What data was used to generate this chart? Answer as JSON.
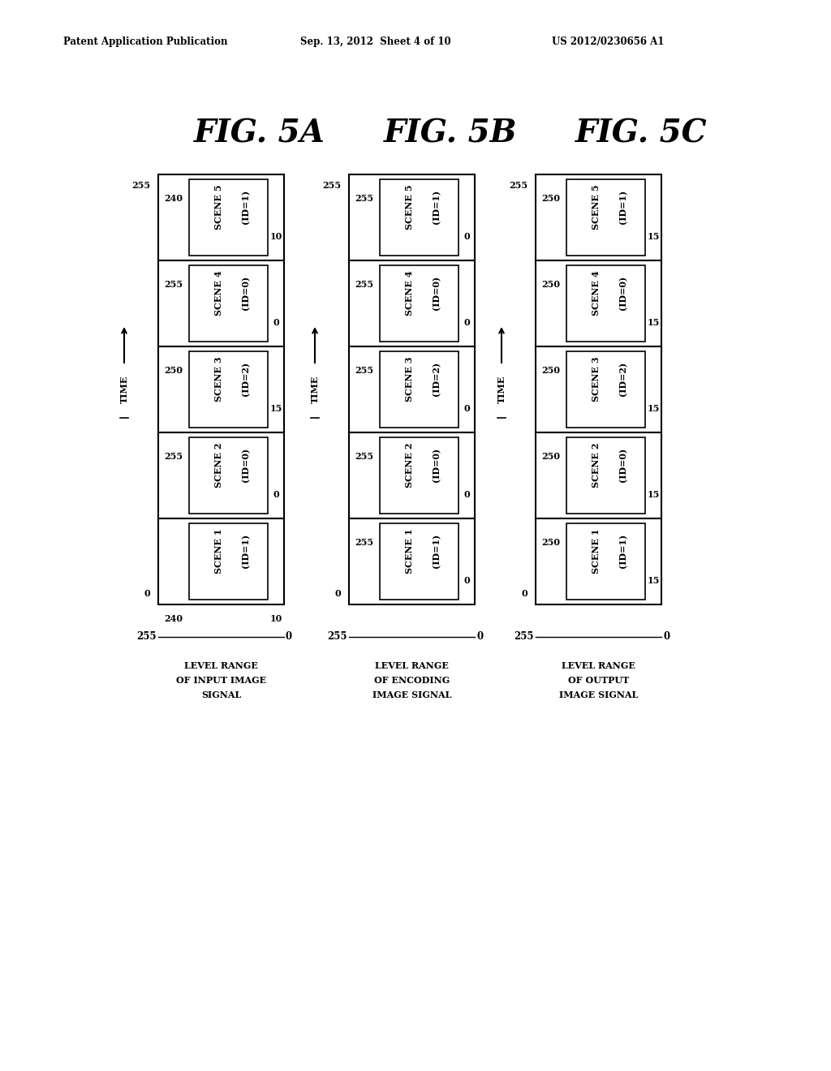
{
  "header_left": "Patent Application Publication",
  "header_center": "Sep. 13, 2012  Sheet 4 of 10",
  "header_right": "US 2012/0230656 A1",
  "figures": [
    {
      "title": "FIG. 5A",
      "ylabel_lines": [
        "LEVEL RANGE",
        "OF INPUT IMAGE",
        "SIGNAL"
      ],
      "scenes": [
        {
          "name": "SCENE 1",
          "id": "(ID=1)",
          "left_val": "",
          "right_val": ""
        },
        {
          "name": "SCENE 2",
          "id": "(ID=0)",
          "left_val": "255",
          "right_val": "0"
        },
        {
          "name": "SCENE 3",
          "id": "(ID=2)",
          "left_val": "250",
          "right_val": "15"
        },
        {
          "name": "SCENE 4",
          "id": "(ID=0)",
          "left_val": "255",
          "right_val": "0"
        },
        {
          "name": "SCENE 5",
          "id": "(ID=1)",
          "left_val": "240",
          "right_val": "10"
        }
      ],
      "bottom_left": "240",
      "bottom_right": "10",
      "y_top": "255",
      "y_bottom": "0",
      "has_bottom_vals": true
    },
    {
      "title": "FIG. 5B",
      "ylabel_lines": [
        "LEVEL RANGE",
        "OF ENCODING",
        "IMAGE SIGNAL"
      ],
      "scenes": [
        {
          "name": "SCENE 1",
          "id": "(ID=1)",
          "left_val": "255",
          "right_val": "0"
        },
        {
          "name": "SCENE 2",
          "id": "(ID=0)",
          "left_val": "255",
          "right_val": "0"
        },
        {
          "name": "SCENE 3",
          "id": "(ID=2)",
          "left_val": "255",
          "right_val": "0"
        },
        {
          "name": "SCENE 4",
          "id": "(ID=0)",
          "left_val": "255",
          "right_val": "0"
        },
        {
          "name": "SCENE 5",
          "id": "(ID=1)",
          "left_val": "255",
          "right_val": "0"
        }
      ],
      "bottom_left": "",
      "bottom_right": "",
      "y_top": "255",
      "y_bottom": "0",
      "has_bottom_vals": false
    },
    {
      "title": "FIG. 5C",
      "ylabel_lines": [
        "LEVEL RANGE",
        "OF OUTPUT",
        "IMAGE SIGNAL"
      ],
      "scenes": [
        {
          "name": "SCENE 1",
          "id": "(ID=1)",
          "left_val": "250",
          "right_val": "15"
        },
        {
          "name": "SCENE 2",
          "id": "(ID=0)",
          "left_val": "250",
          "right_val": "15"
        },
        {
          "name": "SCENE 3",
          "id": "(ID=2)",
          "left_val": "250",
          "right_val": "15"
        },
        {
          "name": "SCENE 4",
          "id": "(ID=0)",
          "left_val": "250",
          "right_val": "15"
        },
        {
          "name": "SCENE 5",
          "id": "(ID=1)",
          "left_val": "250",
          "right_val": "15"
        }
      ],
      "bottom_left": "",
      "bottom_right": "",
      "y_top": "255",
      "y_bottom": "0",
      "has_bottom_vals": false
    }
  ],
  "background_color": "#ffffff"
}
